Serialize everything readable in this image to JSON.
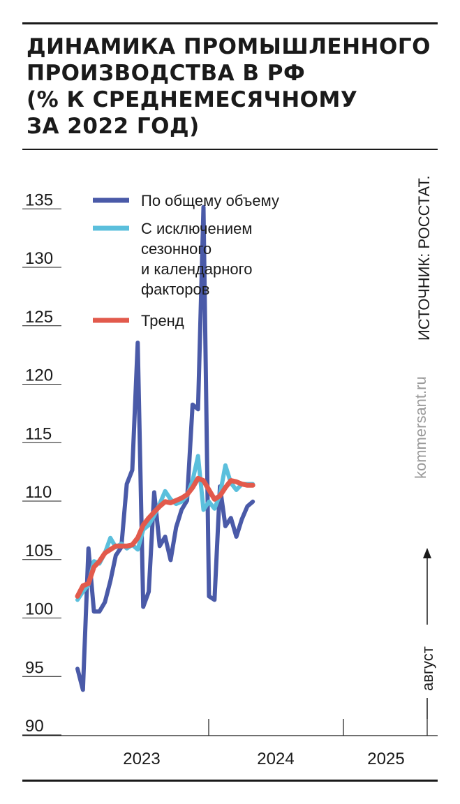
{
  "title_lines": [
    "ДИНАМИКА ПРОМЫШЛЕННОГО",
    "ПРОИЗВОДСТВА В РФ",
    "(% К СРЕДНЕМЕСЯЧНОМУ",
    "ЗА 2022 ГОД)"
  ],
  "source": "ИСТОЧНИК: РОССТАТ.",
  "watermark": "kommersant.ru",
  "annotation": "август",
  "colors": {
    "total": "#4a5aa8",
    "seasonal": "#5bbfdc",
    "trend": "#e25a4c",
    "text": "#1a1a1a"
  },
  "chart_data": {
    "type": "line",
    "title": "ДИНАМИКА ПРОМЫШЛЕННОГО ПРОИЗВОДСТВА В РФ (% К СРЕДНЕМЕСЯЧНОМУ ЗА 2022 ГОД)",
    "ylim": [
      90,
      135
    ],
    "yticks": [
      90,
      95,
      100,
      105,
      110,
      115,
      120,
      125,
      130,
      135
    ],
    "x": [
      "2022-12",
      "2023-01",
      "2023-02",
      "2023-03",
      "2023-04",
      "2023-05",
      "2023-06",
      "2023-07",
      "2023-08",
      "2023-09",
      "2023-10",
      "2023-11",
      "2023-12",
      "2024-01",
      "2024-02",
      "2024-03",
      "2024-04",
      "2024-05",
      "2024-06",
      "2024-07",
      "2024-08",
      "2024-09",
      "2024-10",
      "2024-11",
      "2024-12",
      "2025-01",
      "2025-02",
      "2025-03",
      "2025-04",
      "2025-05",
      "2025-06",
      "2025-07",
      "2025-08"
    ],
    "year_labels": [
      "2023",
      "2024",
      "2025"
    ],
    "legend": [
      "По общему объему",
      "С исключением сезонного и календарного факторов",
      "Тренд"
    ],
    "legend_position": "top-left",
    "series": [
      {
        "name": "По общему объему",
        "color": "#4a5aa8",
        "values": [
          94.7,
          92.9,
          105.0,
          99.6,
          99.6,
          100.4,
          102.2,
          104.4,
          105.1,
          110.5,
          111.7,
          122.6,
          100.0,
          101.3,
          109.8,
          105.2,
          106.0,
          104.0,
          106.8,
          108.3,
          109.1,
          117.3,
          116.9,
          134.2,
          100.9,
          100.6,
          110.3,
          106.9,
          107.6,
          106.0,
          107.5,
          108.6,
          109.0
        ]
      },
      {
        "name": "С исключением сезонного и календарного факторов",
        "color": "#5bbfdc",
        "values": [
          100.6,
          101.3,
          101.9,
          103.9,
          103.7,
          104.6,
          105.9,
          105.1,
          105.4,
          105.0,
          105.3,
          104.9,
          106.6,
          107.0,
          107.8,
          108.8,
          109.9,
          109.2,
          108.8,
          109.0,
          109.5,
          110.8,
          112.9,
          108.3,
          109.0,
          108.4,
          109.6,
          112.1,
          110.6,
          110.0,
          110.5,
          110.5,
          110.5
        ]
      },
      {
        "name": "Тренд",
        "color": "#e25a4c",
        "values": [
          100.9,
          101.8,
          102.0,
          103.4,
          103.9,
          104.6,
          104.9,
          105.2,
          105.2,
          105.2,
          105.3,
          105.9,
          107.0,
          107.6,
          108.1,
          108.6,
          109.0,
          108.9,
          109.1,
          109.3,
          109.6,
          110.2,
          111.0,
          110.8,
          110.0,
          109.2,
          109.5,
          110.2,
          110.8,
          110.7,
          110.5,
          110.4,
          110.4
        ]
      }
    ]
  }
}
